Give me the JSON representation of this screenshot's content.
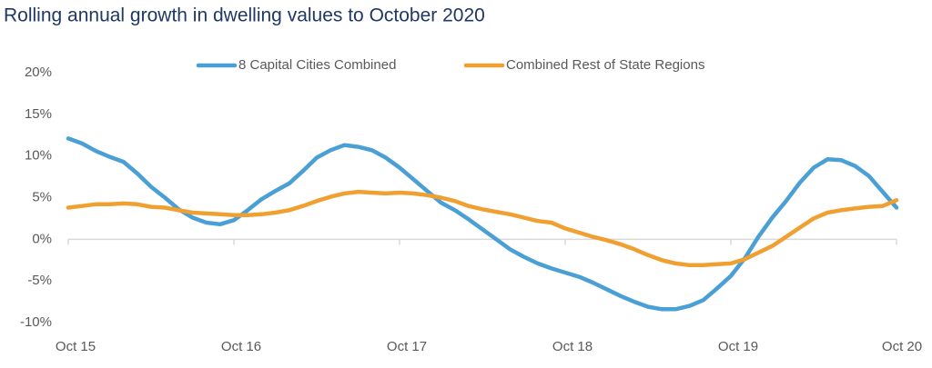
{
  "chart_data": {
    "type": "line",
    "title": "Rolling annual growth in dwelling values to October 2020",
    "categories": [
      "Oct 15",
      null,
      null,
      null,
      null,
      null,
      null,
      null,
      null,
      null,
      null,
      null,
      "Oct 16",
      null,
      null,
      null,
      null,
      null,
      null,
      null,
      null,
      null,
      null,
      null,
      "Oct 17",
      null,
      null,
      null,
      null,
      null,
      null,
      null,
      null,
      null,
      null,
      null,
      "Oct 18",
      null,
      null,
      null,
      null,
      null,
      null,
      null,
      null,
      null,
      null,
      null,
      "Oct 19",
      null,
      null,
      null,
      null,
      null,
      null,
      null,
      null,
      null,
      null,
      null,
      "Oct 20"
    ],
    "series": [
      {
        "name": "8 Capital Cities Combined",
        "color": "#4a9fd5",
        "values": [
          12.1,
          11.5,
          10.6,
          9.9,
          9.3,
          7.9,
          6.3,
          5.0,
          3.6,
          2.6,
          2.0,
          1.8,
          2.3,
          3.5,
          4.8,
          5.8,
          6.7,
          8.2,
          9.8,
          10.7,
          11.3,
          11.1,
          10.7,
          9.8,
          8.6,
          7.2,
          5.8,
          4.4,
          3.5,
          2.4,
          1.2,
          0.0,
          -1.2,
          -2.1,
          -2.9,
          -3.5,
          -4.0,
          -4.5,
          -5.2,
          -6.0,
          -6.8,
          -7.5,
          -8.1,
          -8.4,
          -8.4,
          -8.0,
          -7.3,
          -5.9,
          -4.4,
          -2.3,
          0.3,
          2.6,
          4.6,
          6.8,
          8.6,
          9.6,
          9.5,
          8.8,
          7.6,
          5.7,
          3.8
        ]
      },
      {
        "name": "Combined Rest of State Regions",
        "color": "#f0a030",
        "values": [
          3.8,
          4.0,
          4.2,
          4.2,
          4.3,
          4.2,
          3.9,
          3.8,
          3.5,
          3.2,
          3.1,
          3.0,
          2.9,
          2.9,
          3.0,
          3.2,
          3.5,
          4.0,
          4.6,
          5.1,
          5.5,
          5.7,
          5.6,
          5.5,
          5.6,
          5.5,
          5.3,
          5.0,
          4.6,
          4.0,
          3.6,
          3.3,
          3.0,
          2.6,
          2.2,
          2.0,
          1.3,
          0.8,
          0.3,
          -0.1,
          -0.6,
          -1.2,
          -1.9,
          -2.5,
          -2.9,
          -3.1,
          -3.1,
          -3.0,
          -2.9,
          -2.4,
          -1.6,
          -0.8,
          0.3,
          1.4,
          2.5,
          3.2,
          3.5,
          3.7,
          3.9,
          4.0,
          4.7
        ]
      }
    ],
    "ylim": [
      -10,
      20
    ],
    "yticks": [
      {
        "value": -10,
        "label": "-10%"
      },
      {
        "value": -5,
        "label": "-5%"
      },
      {
        "value": 0,
        "label": "0%"
      },
      {
        "value": 5,
        "label": "5%"
      },
      {
        "value": 10,
        "label": "10%"
      },
      {
        "value": 15,
        "label": "15%"
      },
      {
        "value": 20,
        "label": "20%"
      }
    ],
    "grid": false,
    "legend": "top"
  }
}
